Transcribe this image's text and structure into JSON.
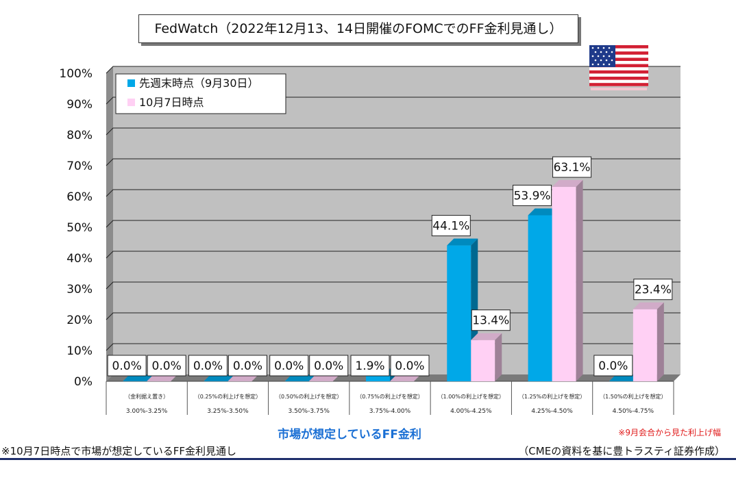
{
  "title": "FedWatch（2022年12月13、14日開催のFOMCでのFF金利見通し）",
  "chart_data": {
    "type": "bar",
    "categories": [
      "3.00%-3.25%",
      "3.25%-3.50%",
      "3.50%-3.75%",
      "3.75%-4.00%",
      "4.00%-4.25%",
      "4.25%-4.50%",
      "4.50%-4.75%"
    ],
    "category_notes": [
      "（金利据え置き）",
      "（0.25%の利上げを想定）",
      "（0.50%の利上げを想定）",
      "（0.75%の利上げを想定）",
      "（1.00%の利上げを想定）",
      "（1.25%の利上げを想定）",
      "（1.50%の利上げを想定）"
    ],
    "series": [
      {
        "name": "先週末時点（9月30日）",
        "values": [
          0.0,
          0.0,
          0.0,
          1.9,
          44.1,
          53.9,
          0.0
        ],
        "color": "#00a8e8"
      },
      {
        "name": "10月7日時点",
        "values": [
          0.0,
          0.0,
          0.0,
          0.0,
          13.4,
          63.1,
          23.4
        ],
        "color": "#ffd0f4"
      }
    ],
    "data_labels": [
      [
        "0.0%",
        "0.0%",
        "0.0%",
        "1.9%",
        "44.1%",
        "53.9%",
        "0.0%"
      ],
      [
        "0.0%",
        "0.0%",
        "0.0%",
        "0.0%",
        "13.4%",
        "63.1%",
        "23.4%"
      ]
    ],
    "yticks": [
      "0%",
      "10%",
      "20%",
      "30%",
      "40%",
      "50%",
      "60%",
      "70%",
      "80%",
      "90%",
      "100%"
    ],
    "ylim": [
      0,
      100
    ],
    "xlabel": "市場が想定しているFF金利",
    "ylabel": "",
    "grid": true,
    "legend_position": "top-left"
  },
  "note_red": "※9月会合から見た利上げ幅",
  "footnote": "※10月7日時点で市場が想定しているFF金利見通し",
  "source": "（CMEの資料を基に豊トラスティ証券作成）",
  "flag_icon": "us-flag-icon"
}
